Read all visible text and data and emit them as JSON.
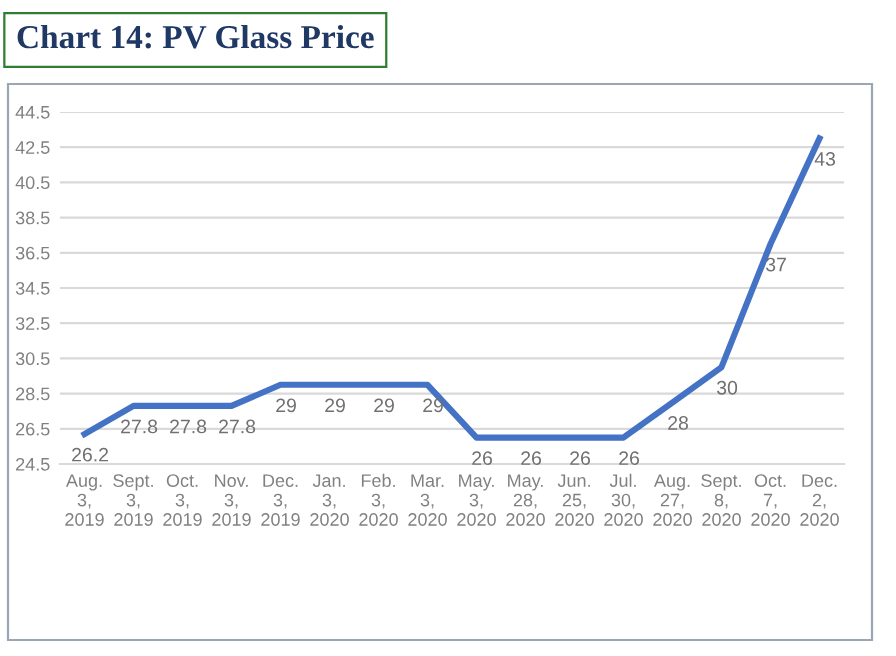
{
  "chart_data": {
    "type": "line",
    "title": "Chart 14: PV Glass Price",
    "categories": [
      "Aug.\n3,\n2019",
      "Sept.\n3,\n2019",
      "Oct.\n3,\n2019",
      "Nov.\n3,\n2019",
      "Dec.\n3,\n2019",
      "Jan.\n3,\n2020",
      "Feb.\n3,\n2020",
      "Mar.\n3,\n2020",
      "May.\n3,\n2020",
      "May.\n28,\n2020",
      "Jun.\n25,\n2020",
      "Jul.\n30,\n2020",
      "Aug.\n27,\n2020",
      "Sept.\n8,\n2020",
      "Oct.\n7,\n2020",
      "Dec.\n2,\n2020"
    ],
    "series": [
      {
        "color": "#4472c4",
        "values": [
          26.2,
          27.8,
          27.8,
          27.8,
          29,
          29,
          29,
          29,
          26,
          26,
          26,
          26,
          28,
          30,
          37,
          43
        ]
      }
    ],
    "data_labels": true,
    "ylim": [
      24.5,
      44.5
    ],
    "yticks": [
      24.5,
      26.5,
      28.5,
      30.5,
      32.5,
      34.5,
      36.5,
      38.5,
      40.5,
      42.5,
      44.5
    ],
    "grid": "y",
    "marker": "none",
    "line_style": "solid"
  }
}
